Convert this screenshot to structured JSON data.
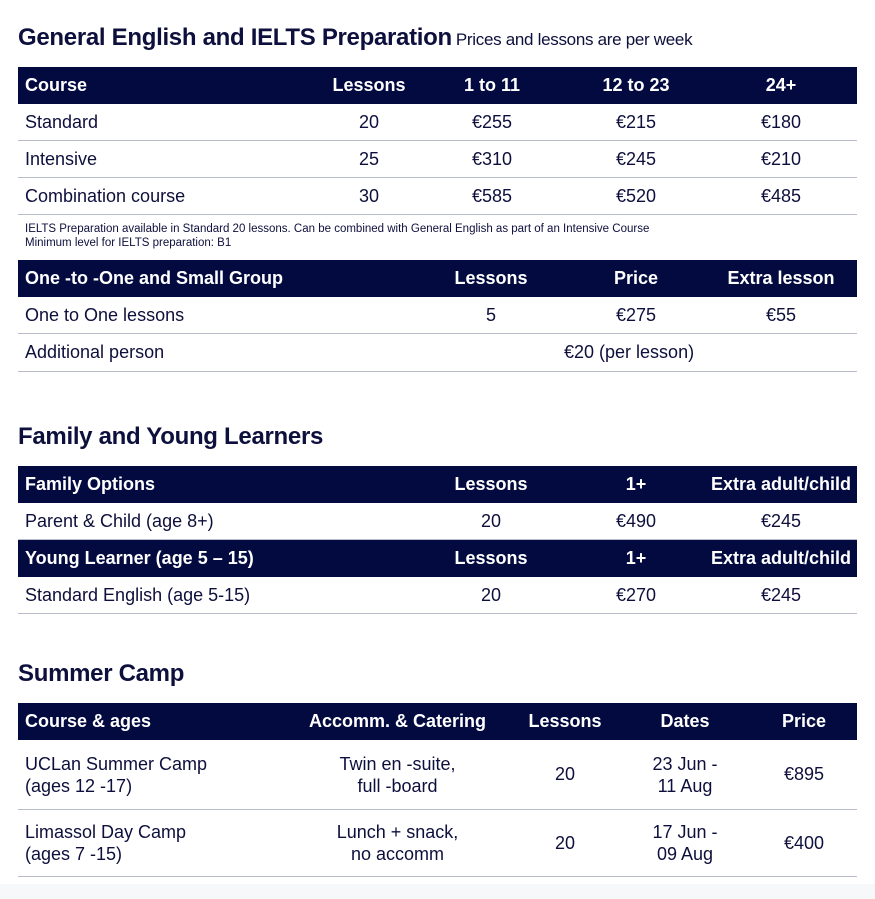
{
  "section1": {
    "title": "General English and IELTS Preparation",
    "subtitle": "Prices and lessons are per week",
    "headers": [
      "Course",
      "Lessons",
      "1 to 11",
      "12 to 23",
      "24+"
    ],
    "rows": [
      [
        "Standard",
        "20",
        "€255",
        "€215",
        "€180"
      ],
      [
        "Intensive",
        "25",
        "€310",
        "€245",
        "€210"
      ],
      [
        "Combination course",
        "30",
        "€585",
        "€520",
        "€485"
      ]
    ],
    "notes": [
      "IELTS Preparation available in Standard 20 lessons. Can be combined with General English as part of an Intensive Course",
      "Minimum level for IELTS preparation: B1"
    ],
    "one_to_one": {
      "headers": [
        "One -to -One and Small Group",
        "Lessons",
        "Price",
        "Extra lesson"
      ],
      "row": [
        "One to One lessons",
        "5",
        "€275",
        "€55"
      ],
      "additional": [
        "Additional person",
        "€20 (per lesson)"
      ]
    }
  },
  "section2": {
    "title": "Family and Young Learners",
    "family_headers": [
      "Family Options",
      "Lessons",
      "1+",
      "Extra adult/child"
    ],
    "family_row": [
      "Parent & Child (age 8+)",
      "20",
      "€490",
      "€245"
    ],
    "young_headers": [
      "Young Learner (age 5 – 15)",
      "Lessons",
      "1+",
      "Extra adult/child"
    ],
    "young_row": [
      "Standard English (age 5-15)",
      "20",
      "€270",
      "€245"
    ]
  },
  "section3": {
    "title": "Summer Camp",
    "headers": [
      "Course & ages",
      "Accomm. & Catering",
      "Lessons",
      "Dates",
      "Price"
    ],
    "rows": [
      {
        "course": [
          "UCLan Summer Camp",
          "(ages 12 -17)"
        ],
        "accomm": [
          "Twin en -suite,",
          "full -board"
        ],
        "lessons": "20",
        "dates": [
          "23 Jun -",
          "11 Aug"
        ],
        "price": "€895"
      },
      {
        "course": [
          "Limassol Day Camp",
          "(ages 7 -15)"
        ],
        "accomm": [
          "Lunch + snack,",
          "no accomm"
        ],
        "lessons": "20",
        "dates": [
          "17 Jun -",
          "09 Aug"
        ],
        "price": "€400"
      }
    ]
  },
  "colors": {
    "header_bg": "#030a40",
    "text": "#0d0f3c",
    "rule": "#b8bccb"
  }
}
